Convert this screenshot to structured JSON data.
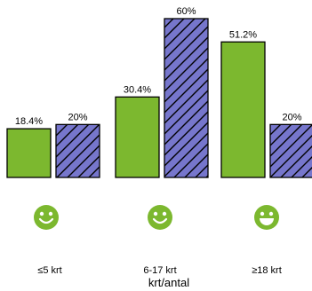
{
  "chart_data": {
    "type": "bar",
    "categories": [
      "≤5 krt",
      "6-17 krt",
      "≥18 krt"
    ],
    "series": [
      {
        "values": [
          18.4,
          30.4,
          51.2
        ],
        "labels": [
          "18.4%",
          "30.4%",
          "51.2%"
        ],
        "color": "#7cb82f",
        "pattern": "solid"
      },
      {
        "values": [
          20,
          60,
          20
        ],
        "labels": [
          "20%",
          "60%",
          "20%"
        ],
        "color": "#7676cc",
        "pattern": "hatched"
      }
    ],
    "xlabel": "krt/antal",
    "ylim": [
      0,
      60
    ],
    "grid": false,
    "legend": "none",
    "icons": [
      "smiley-icon",
      "smiley-icon",
      "smiley-grin-icon"
    ],
    "icon_color": "#7cb82f"
  }
}
